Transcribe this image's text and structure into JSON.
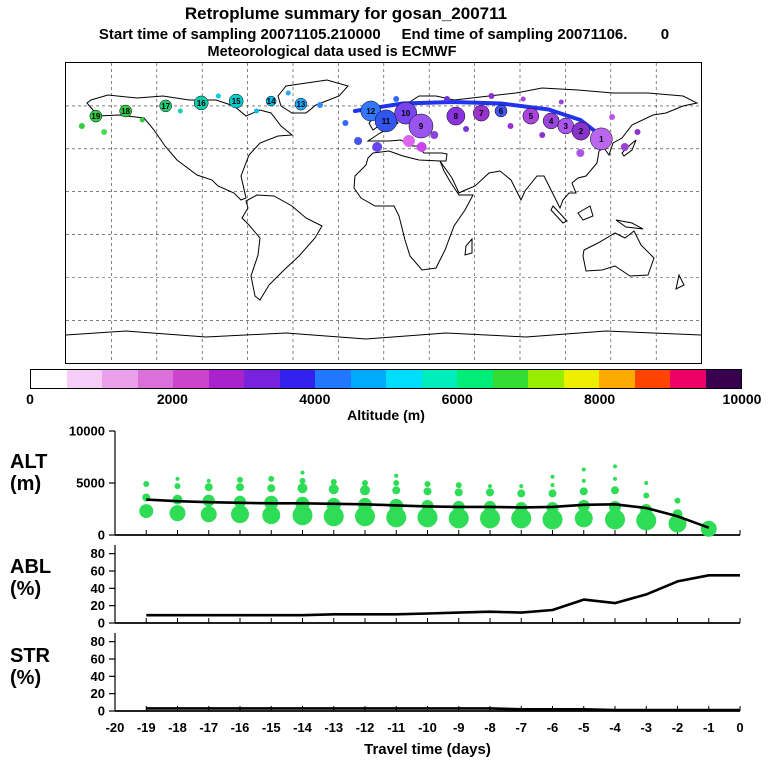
{
  "header": {
    "title": "Retroplume summary for gosan_200711",
    "subtitle": "Start time of sampling 20071105.210000     End time of sampling 20071106.        0",
    "met_line": "Meteorological data used is ECMWF"
  },
  "colorbar": {
    "label": "Altitude (m)",
    "ticks": [
      0,
      2000,
      4000,
      6000,
      8000,
      10000
    ],
    "colors": [
      "#ffffff",
      "#f6cdf6",
      "#eaa0ea",
      "#db70db",
      "#cc44cc",
      "#aa22cc",
      "#7722dd",
      "#3322ee",
      "#2277ff",
      "#00aaff",
      "#00ddff",
      "#00eebb",
      "#00ee77",
      "#33dd33",
      "#99ee00",
      "#eeee00",
      "#ffaa00",
      "#ff4400",
      "#ee0066",
      "#3a0050"
    ]
  },
  "panel_labels": {
    "alt_line1": "ALT",
    "alt_line2": "(m)",
    "abl_line1": "ABL",
    "abl_line2": "(%)",
    "str_line1": "STR",
    "str_line2": "(%)"
  },
  "xaxis": {
    "label": "Travel time (days)",
    "ticks": [
      -20,
      -19,
      -18,
      -17,
      -16,
      -15,
      -14,
      -13,
      -12,
      -11,
      -10,
      -9,
      -8,
      -7,
      -6,
      -5,
      -4,
      -3,
      -2,
      -1,
      0
    ]
  },
  "chart_data": [
    {
      "type": "scatter",
      "name": "map_trajectory",
      "title": "Retroplume trajectory points colored by altitude, labeled by days back",
      "path_color": "#2233ee",
      "mean_path": [
        [
          45.5,
          16
        ],
        [
          53,
          13.5
        ],
        [
          61,
          13
        ],
        [
          68.5,
          13.5
        ],
        [
          76,
          15.5
        ],
        [
          81,
          19
        ],
        [
          85,
          25.5
        ]
      ],
      "points": [
        {
          "day": 19,
          "x": 4.7,
          "y": 17.7,
          "r": 6,
          "color": "#33cc44"
        },
        {
          "day": 18,
          "x": 9.4,
          "y": 16.0,
          "r": 6,
          "color": "#33cc44"
        },
        {
          "day": 17,
          "x": 15.7,
          "y": 14.3,
          "r": 6,
          "color": "#22cc77"
        },
        {
          "day": 16,
          "x": 21.3,
          "y": 13.3,
          "r": 7,
          "color": "#11ccaa"
        },
        {
          "day": 15,
          "x": 26.8,
          "y": 12.7,
          "r": 7,
          "color": "#00cccc"
        },
        {
          "day": 14,
          "x": 32.3,
          "y": 12.7,
          "r": 5,
          "color": "#00bbee"
        },
        {
          "day": 13,
          "x": 37.0,
          "y": 13.7,
          "r": 6,
          "color": "#22aaff"
        },
        {
          "day": 12,
          "x": 48.0,
          "y": 16.0,
          "r": 10,
          "color": "#3377ff"
        },
        {
          "day": 11,
          "x": 50.4,
          "y": 19.3,
          "r": 11,
          "color": "#3355ee"
        },
        {
          "day": 10,
          "x": 53.5,
          "y": 16.7,
          "r": 11,
          "color": "#7744ee"
        },
        {
          "day": 9,
          "x": 55.9,
          "y": 21.0,
          "r": 12,
          "color": "#9955ee"
        },
        {
          "day": 8,
          "x": 61.4,
          "y": 17.7,
          "r": 9,
          "color": "#8833dd"
        },
        {
          "day": 7,
          "x": 65.4,
          "y": 16.7,
          "r": 8,
          "color": "#9933cc"
        },
        {
          "day": 6,
          "x": 68.5,
          "y": 16.0,
          "r": 6,
          "color": "#4455ee"
        },
        {
          "day": 5,
          "x": 73.2,
          "y": 17.7,
          "r": 8,
          "color": "#aa44dd"
        },
        {
          "day": 4,
          "x": 76.4,
          "y": 19.3,
          "r": 8,
          "color": "#9944dd"
        },
        {
          "day": 3,
          "x": 78.7,
          "y": 21.0,
          "r": 8,
          "color": "#aa55ee"
        },
        {
          "day": 2,
          "x": 81.1,
          "y": 22.7,
          "r": 9,
          "color": "#8833cc"
        },
        {
          "day": 1,
          "x": 84.3,
          "y": 25.3,
          "r": 11,
          "color": "#bb66ee"
        }
      ],
      "extra_dots": [
        {
          "x": 2.5,
          "y": 21,
          "r": 3,
          "color": "#33cc44"
        },
        {
          "x": 6,
          "y": 23,
          "r": 3,
          "color": "#44dd55"
        },
        {
          "x": 12,
          "y": 19,
          "r": 2.5,
          "color": "#33cc44"
        },
        {
          "x": 18,
          "y": 16,
          "r": 2.5,
          "color": "#22ccaa"
        },
        {
          "x": 24,
          "y": 11,
          "r": 2.5,
          "color": "#00ccdd"
        },
        {
          "x": 30,
          "y": 16,
          "r": 2.5,
          "color": "#00bbee"
        },
        {
          "x": 35,
          "y": 10,
          "r": 2.5,
          "color": "#22aaff"
        },
        {
          "x": 40,
          "y": 14,
          "r": 3,
          "color": "#3388ff"
        },
        {
          "x": 44,
          "y": 20,
          "r": 3,
          "color": "#3366ff"
        },
        {
          "x": 46,
          "y": 26,
          "r": 4,
          "color": "#4455ee"
        },
        {
          "x": 49,
          "y": 28,
          "r": 5,
          "color": "#6644ee"
        },
        {
          "x": 52,
          "y": 12,
          "r": 3,
          "color": "#3366ff"
        },
        {
          "x": 54,
          "y": 26,
          "r": 6,
          "color": "#dd66ee"
        },
        {
          "x": 56,
          "y": 28,
          "r": 5,
          "color": "#cc44ee"
        },
        {
          "x": 58,
          "y": 24,
          "r": 4,
          "color": "#8844dd"
        },
        {
          "x": 60,
          "y": 12,
          "r": 3,
          "color": "#6633dd"
        },
        {
          "x": 63,
          "y": 22,
          "r": 3,
          "color": "#7733dd"
        },
        {
          "x": 67,
          "y": 11,
          "r": 3,
          "color": "#8833cc"
        },
        {
          "x": 70,
          "y": 21,
          "r": 3,
          "color": "#9933cc"
        },
        {
          "x": 72,
          "y": 12,
          "r": 2.5,
          "color": "#aa44dd"
        },
        {
          "x": 75,
          "y": 24,
          "r": 3,
          "color": "#8833cc"
        },
        {
          "x": 78,
          "y": 13,
          "r": 2.5,
          "color": "#9944dd"
        },
        {
          "x": 81,
          "y": 30,
          "r": 4,
          "color": "#aa55ee"
        },
        {
          "x": 86,
          "y": 18,
          "r": 3,
          "color": "#bb55ee"
        },
        {
          "x": 88,
          "y": 28,
          "r": 4,
          "color": "#9944cc"
        },
        {
          "x": 90,
          "y": 23,
          "r": 3,
          "color": "#8833cc"
        }
      ]
    },
    {
      "type": "scatter+line",
      "name": "ALT",
      "ylabel": "ALT (m)",
      "ylim": [
        0,
        10000
      ],
      "yticks": [
        0,
        5000,
        10000
      ],
      "bubble_color": "#2edd55",
      "x": [
        -19,
        -18,
        -17,
        -16,
        -15,
        -14,
        -13,
        -12,
        -11,
        -10,
        -9,
        -8,
        -7,
        -6,
        -5,
        -4,
        -3,
        -2,
        -1
      ],
      "mean_line": [
        3400,
        3250,
        3150,
        3100,
        3050,
        3050,
        3000,
        2950,
        2850,
        2750,
        2700,
        2700,
        2650,
        2700,
        2900,
        2950,
        2600,
        1800,
        700
      ],
      "bubbles": [
        {
          "day": -19,
          "pts": [
            [
              2300,
              7
            ],
            [
              3600,
              4
            ],
            [
              4900,
              3
            ]
          ]
        },
        {
          "day": -18,
          "pts": [
            [
              2100,
              8
            ],
            [
              3400,
              5
            ],
            [
              4700,
              3
            ],
            [
              5400,
              2
            ]
          ]
        },
        {
          "day": -17,
          "pts": [
            [
              2000,
              8
            ],
            [
              3300,
              6
            ],
            [
              4600,
              4
            ],
            [
              5200,
              2
            ]
          ]
        },
        {
          "day": -16,
          "pts": [
            [
              2000,
              9
            ],
            [
              3200,
              6
            ],
            [
              4600,
              4
            ],
            [
              5300,
              3
            ]
          ]
        },
        {
          "day": -15,
          "pts": [
            [
              1900,
              9
            ],
            [
              3100,
              7
            ],
            [
              4500,
              4
            ],
            [
              5400,
              3
            ]
          ]
        },
        {
          "day": -14,
          "pts": [
            [
              1900,
              10
            ],
            [
              3000,
              7
            ],
            [
              4500,
              5
            ],
            [
              5200,
              3
            ],
            [
              6000,
              2
            ]
          ]
        },
        {
          "day": -13,
          "pts": [
            [
              1800,
              10
            ],
            [
              2900,
              7
            ],
            [
              4400,
              5
            ],
            [
              5100,
              3
            ]
          ]
        },
        {
          "day": -12,
          "pts": [
            [
              1800,
              10
            ],
            [
              2900,
              7
            ],
            [
              4300,
              5
            ],
            [
              5000,
              3
            ]
          ]
        },
        {
          "day": -11,
          "pts": [
            [
              1700,
              10
            ],
            [
              2800,
              7
            ],
            [
              4300,
              4
            ],
            [
              5000,
              3
            ],
            [
              5700,
              2
            ]
          ]
        },
        {
          "day": -10,
          "pts": [
            [
              1700,
              10
            ],
            [
              2800,
              6
            ],
            [
              4200,
              4
            ],
            [
              4900,
              3
            ]
          ]
        },
        {
          "day": -9,
          "pts": [
            [
              1600,
              10
            ],
            [
              2700,
              6
            ],
            [
              4100,
              4
            ],
            [
              4800,
              3
            ]
          ]
        },
        {
          "day": -8,
          "pts": [
            [
              1600,
              10
            ],
            [
              2700,
              6
            ],
            [
              4100,
              4
            ],
            [
              4700,
              2
            ]
          ]
        },
        {
          "day": -7,
          "pts": [
            [
              1600,
              10
            ],
            [
              2600,
              6
            ],
            [
              4000,
              4
            ],
            [
              4700,
              2
            ]
          ]
        },
        {
          "day": -6,
          "pts": [
            [
              1500,
              10
            ],
            [
              2600,
              6
            ],
            [
              4000,
              4
            ],
            [
              4800,
              2
            ],
            [
              5600,
              2
            ]
          ]
        },
        {
          "day": -5,
          "pts": [
            [
              1600,
              9
            ],
            [
              2800,
              6
            ],
            [
              4200,
              4
            ],
            [
              5200,
              2
            ],
            [
              6300,
              2
            ]
          ]
        },
        {
          "day": -4,
          "pts": [
            [
              1500,
              10
            ],
            [
              2700,
              6
            ],
            [
              4300,
              4
            ],
            [
              5400,
              2
            ],
            [
              6600,
              2
            ]
          ]
        },
        {
          "day": -3,
          "pts": [
            [
              1400,
              10
            ],
            [
              2400,
              6
            ],
            [
              3800,
              3
            ],
            [
              5000,
              2
            ]
          ]
        },
        {
          "day": -2,
          "pts": [
            [
              1100,
              9
            ],
            [
              2000,
              5
            ],
            [
              3300,
              3
            ]
          ]
        },
        {
          "day": -1,
          "pts": [
            [
              600,
              8
            ]
          ]
        }
      ]
    },
    {
      "type": "line",
      "name": "ABL",
      "ylabel": "ABL (%)",
      "ylim": [
        0,
        90
      ],
      "yticks": [
        0,
        20,
        40,
        60,
        80
      ],
      "x": [
        -19,
        -18,
        -17,
        -16,
        -15,
        -14,
        -13,
        -12,
        -11,
        -10,
        -9,
        -8,
        -7,
        -6,
        -5,
        -4,
        -3,
        -2,
        -1,
        0
      ],
      "values": [
        9,
        9,
        9,
        9,
        9,
        9,
        10,
        10,
        10,
        11,
        12,
        13,
        12,
        15,
        27,
        23,
        33,
        48,
        55,
        55
      ]
    },
    {
      "type": "line",
      "name": "STR",
      "ylabel": "STR (%)",
      "ylim": [
        0,
        90
      ],
      "yticks": [
        0,
        20,
        40,
        60,
        80
      ],
      "x": [
        -19,
        -18,
        -17,
        -16,
        -15,
        -14,
        -13,
        -12,
        -11,
        -10,
        -9,
        -8,
        -7,
        -6,
        -5,
        -4,
        -3,
        -2,
        -1,
        0
      ],
      "values": [
        3,
        3,
        3,
        3,
        3,
        3,
        3,
        3,
        3,
        3,
        3,
        3,
        2,
        2,
        2,
        1,
        1,
        1,
        1,
        1
      ]
    }
  ]
}
